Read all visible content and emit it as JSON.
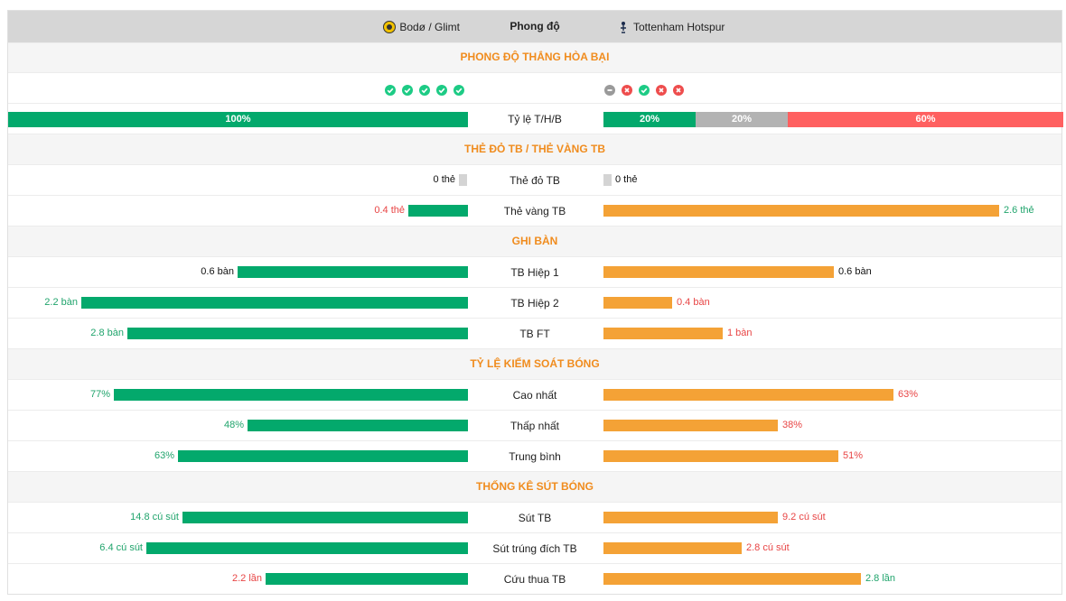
{
  "header": {
    "home_team": "Bodø / Glimt",
    "title": "Phong độ",
    "away_team": "Tottenham Hotspur"
  },
  "sections": {
    "form": "PHONG ĐỘ THẮNG HÒA BẠI",
    "cards": "THẺ ĐỎ TB / THẺ VÀNG TB",
    "goals": "GHI BÀN",
    "possession": "TỶ LỆ KIỂM SOÁT BÓNG",
    "shots": "THỐNG KÊ SÚT BÓNG"
  },
  "form": {
    "home": [
      "win",
      "win",
      "win",
      "win",
      "win"
    ],
    "away": [
      "draw",
      "loss",
      "win",
      "loss",
      "loss"
    ]
  },
  "wdl": {
    "label": "Tỷ lệ T/H/B",
    "home": {
      "win": "100%",
      "win_fraction": 1.0
    },
    "away": {
      "win": "20%",
      "draw": "20%",
      "loss": "60%",
      "win_fraction": 0.2,
      "draw_fraction": 0.2,
      "loss_fraction": 0.6
    }
  },
  "rows": {
    "red_cards": {
      "label": "Thẻ đỏ TB",
      "home": "0 thẻ",
      "away": "0 thẻ",
      "home_fraction": 0.0,
      "away_fraction": 0.0
    },
    "yellow_cards": {
      "label": "Thẻ vàng TB",
      "home": "0.4 thẻ",
      "away": "2.6 thẻ",
      "home_fraction": 0.13,
      "away_fraction": 0.86
    },
    "goals_h1": {
      "label": "TB Hiệp 1",
      "home": "0.6 bàn",
      "away": "0.6 bàn",
      "home_fraction": 0.5,
      "away_fraction": 0.5
    },
    "goals_h2": {
      "label": "TB Hiệp 2",
      "home": "2.2 bàn",
      "away": "0.4 bàn",
      "home_fraction": 0.84,
      "away_fraction": 0.15
    },
    "goals_ft": {
      "label": "TB FT",
      "home": "2.8 bàn",
      "away": "1 bàn",
      "home_fraction": 0.74,
      "away_fraction": 0.26
    },
    "poss_max": {
      "label": "Cao nhất",
      "home": "77%",
      "away": "63%",
      "home_fraction": 0.77,
      "away_fraction": 0.63
    },
    "poss_min": {
      "label": "Thấp nhất",
      "home": "48%",
      "away": "38%",
      "home_fraction": 0.48,
      "away_fraction": 0.38
    },
    "poss_avg": {
      "label": "Trung bình",
      "home": "63%",
      "away": "51%",
      "home_fraction": 0.63,
      "away_fraction": 0.51
    },
    "shots": {
      "label": "Sút TB",
      "home": "14.8 cú sút",
      "away": "9.2 cú sút",
      "home_fraction": 0.62,
      "away_fraction": 0.38
    },
    "shots_on": {
      "label": "Sút trúng đích TB",
      "home": "6.4 cú sút",
      "away": "2.8 cú sút",
      "home_fraction": 0.7,
      "away_fraction": 0.3
    },
    "saves": {
      "label": "Cứu thua TB",
      "home": "2.2 lần",
      "away": "2.8 lần",
      "home_fraction": 0.44,
      "away_fraction": 0.56
    }
  },
  "colors": {
    "home_bar": "#03a96c",
    "away_bar": "#f4a236",
    "draw_bar": "#b3b3b3",
    "loss_bar": "#ff6060",
    "section_text": "#f08c1e"
  }
}
